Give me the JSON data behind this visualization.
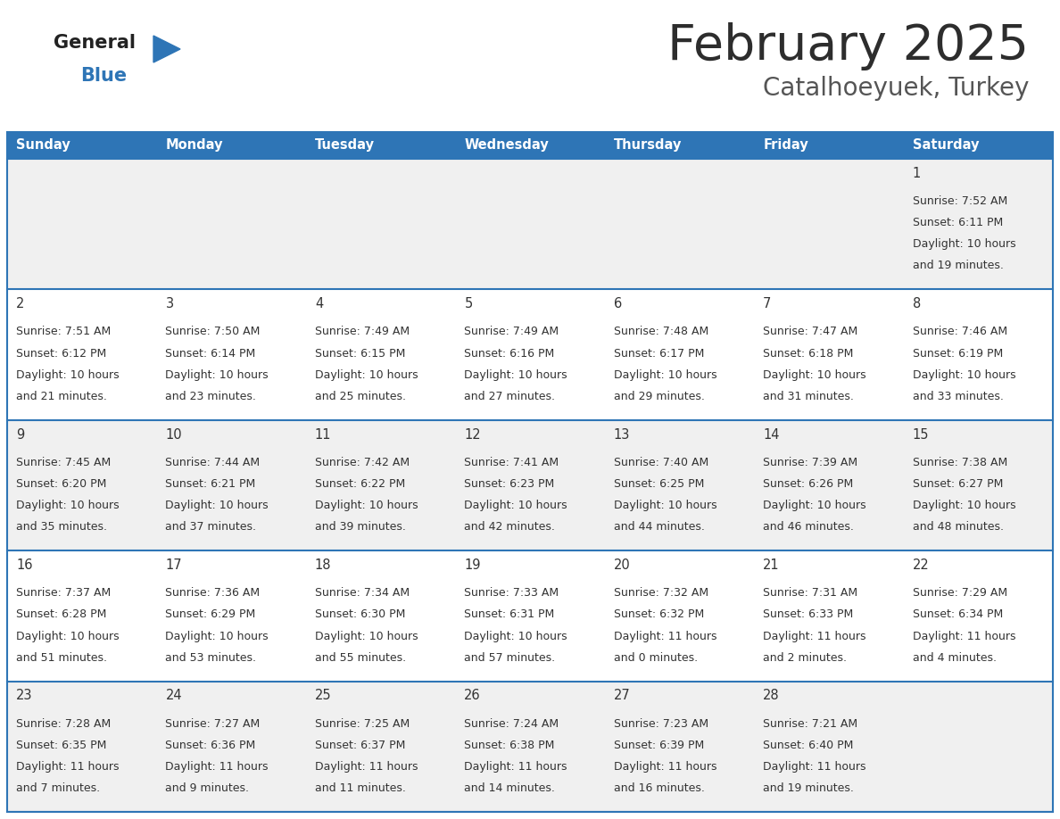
{
  "title": "February 2025",
  "subtitle": "Catalhoeyuek, Turkey",
  "days_of_week": [
    "Sunday",
    "Monday",
    "Tuesday",
    "Wednesday",
    "Thursday",
    "Friday",
    "Saturday"
  ],
  "header_bg": "#2E75B6",
  "header_text": "#FFFFFF",
  "row_bg_odd": "#F0F0F0",
  "row_bg_even": "#FFFFFF",
  "cell_text": "#333333",
  "border_color": "#2E75B6",
  "title_color": "#2d2d2d",
  "subtitle_color": "#555555",
  "logo_general_color": "#222222",
  "logo_blue_color": "#2E75B6",
  "calendar_data": [
    [
      null,
      null,
      null,
      null,
      null,
      null,
      {
        "day": 1,
        "sunrise": "7:52 AM",
        "sunset": "6:11 PM",
        "daylight_h": "10 hours",
        "daylight_m": "and 19 minutes."
      }
    ],
    [
      {
        "day": 2,
        "sunrise": "7:51 AM",
        "sunset": "6:12 PM",
        "daylight_h": "10 hours",
        "daylight_m": "and 21 minutes."
      },
      {
        "day": 3,
        "sunrise": "7:50 AM",
        "sunset": "6:14 PM",
        "daylight_h": "10 hours",
        "daylight_m": "and 23 minutes."
      },
      {
        "day": 4,
        "sunrise": "7:49 AM",
        "sunset": "6:15 PM",
        "daylight_h": "10 hours",
        "daylight_m": "and 25 minutes."
      },
      {
        "day": 5,
        "sunrise": "7:49 AM",
        "sunset": "6:16 PM",
        "daylight_h": "10 hours",
        "daylight_m": "and 27 minutes."
      },
      {
        "day": 6,
        "sunrise": "7:48 AM",
        "sunset": "6:17 PM",
        "daylight_h": "10 hours",
        "daylight_m": "and 29 minutes."
      },
      {
        "day": 7,
        "sunrise": "7:47 AM",
        "sunset": "6:18 PM",
        "daylight_h": "10 hours",
        "daylight_m": "and 31 minutes."
      },
      {
        "day": 8,
        "sunrise": "7:46 AM",
        "sunset": "6:19 PM",
        "daylight_h": "10 hours",
        "daylight_m": "and 33 minutes."
      }
    ],
    [
      {
        "day": 9,
        "sunrise": "7:45 AM",
        "sunset": "6:20 PM",
        "daylight_h": "10 hours",
        "daylight_m": "and 35 minutes."
      },
      {
        "day": 10,
        "sunrise": "7:44 AM",
        "sunset": "6:21 PM",
        "daylight_h": "10 hours",
        "daylight_m": "and 37 minutes."
      },
      {
        "day": 11,
        "sunrise": "7:42 AM",
        "sunset": "6:22 PM",
        "daylight_h": "10 hours",
        "daylight_m": "and 39 minutes."
      },
      {
        "day": 12,
        "sunrise": "7:41 AM",
        "sunset": "6:23 PM",
        "daylight_h": "10 hours",
        "daylight_m": "and 42 minutes."
      },
      {
        "day": 13,
        "sunrise": "7:40 AM",
        "sunset": "6:25 PM",
        "daylight_h": "10 hours",
        "daylight_m": "and 44 minutes."
      },
      {
        "day": 14,
        "sunrise": "7:39 AM",
        "sunset": "6:26 PM",
        "daylight_h": "10 hours",
        "daylight_m": "and 46 minutes."
      },
      {
        "day": 15,
        "sunrise": "7:38 AM",
        "sunset": "6:27 PM",
        "daylight_h": "10 hours",
        "daylight_m": "and 48 minutes."
      }
    ],
    [
      {
        "day": 16,
        "sunrise": "7:37 AM",
        "sunset": "6:28 PM",
        "daylight_h": "10 hours",
        "daylight_m": "and 51 minutes."
      },
      {
        "day": 17,
        "sunrise": "7:36 AM",
        "sunset": "6:29 PM",
        "daylight_h": "10 hours",
        "daylight_m": "and 53 minutes."
      },
      {
        "day": 18,
        "sunrise": "7:34 AM",
        "sunset": "6:30 PM",
        "daylight_h": "10 hours",
        "daylight_m": "and 55 minutes."
      },
      {
        "day": 19,
        "sunrise": "7:33 AM",
        "sunset": "6:31 PM",
        "daylight_h": "10 hours",
        "daylight_m": "and 57 minutes."
      },
      {
        "day": 20,
        "sunrise": "7:32 AM",
        "sunset": "6:32 PM",
        "daylight_h": "11 hours",
        "daylight_m": "and 0 minutes."
      },
      {
        "day": 21,
        "sunrise": "7:31 AM",
        "sunset": "6:33 PM",
        "daylight_h": "11 hours",
        "daylight_m": "and 2 minutes."
      },
      {
        "day": 22,
        "sunrise": "7:29 AM",
        "sunset": "6:34 PM",
        "daylight_h": "11 hours",
        "daylight_m": "and 4 minutes."
      }
    ],
    [
      {
        "day": 23,
        "sunrise": "7:28 AM",
        "sunset": "6:35 PM",
        "daylight_h": "11 hours",
        "daylight_m": "and 7 minutes."
      },
      {
        "day": 24,
        "sunrise": "7:27 AM",
        "sunset": "6:36 PM",
        "daylight_h": "11 hours",
        "daylight_m": "and 9 minutes."
      },
      {
        "day": 25,
        "sunrise": "7:25 AM",
        "sunset": "6:37 PM",
        "daylight_h": "11 hours",
        "daylight_m": "and 11 minutes."
      },
      {
        "day": 26,
        "sunrise": "7:24 AM",
        "sunset": "6:38 PM",
        "daylight_h": "11 hours",
        "daylight_m": "and 14 minutes."
      },
      {
        "day": 27,
        "sunrise": "7:23 AM",
        "sunset": "6:39 PM",
        "daylight_h": "11 hours",
        "daylight_m": "and 16 minutes."
      },
      {
        "day": 28,
        "sunrise": "7:21 AM",
        "sunset": "6:40 PM",
        "daylight_h": "11 hours",
        "daylight_m": "and 19 minutes."
      },
      null
    ]
  ]
}
